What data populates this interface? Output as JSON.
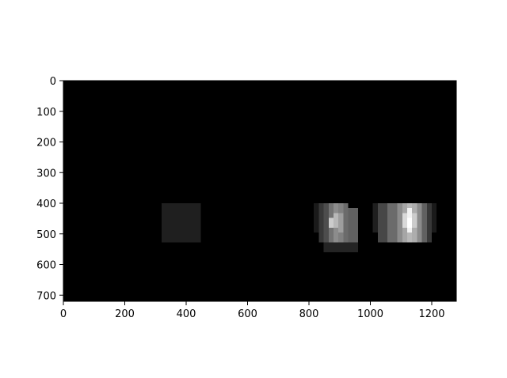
{
  "chart_data": {
    "type": "heatmap",
    "title": "",
    "xlabel": "",
    "ylabel": "",
    "xlim": [
      0,
      1280
    ],
    "ylim": [
      720,
      0
    ],
    "x_ticks": [
      0,
      200,
      400,
      600,
      800,
      1000,
      1200
    ],
    "y_ticks": [
      0,
      100,
      200,
      300,
      400,
      500,
      600,
      700
    ],
    "colormap": "gray",
    "background_color": "#000000",
    "grid": false,
    "cells": [
      {
        "x0": 320,
        "x1": 448,
        "y0": 400,
        "y1": 528,
        "v": 0.12
      },
      {
        "x0": 816,
        "x1": 832,
        "y0": 400,
        "y1": 496,
        "v": 0.1
      },
      {
        "x0": 832,
        "x1": 848,
        "y0": 400,
        "y1": 528,
        "v": 0.22
      },
      {
        "x0": 848,
        "x1": 864,
        "y0": 400,
        "y1": 560,
        "v": 0.3
      },
      {
        "x0": 864,
        "x1": 880,
        "y0": 400,
        "y1": 560,
        "v": 0.45
      },
      {
        "x0": 880,
        "x1": 896,
        "y0": 400,
        "y1": 560,
        "v": 0.55
      },
      {
        "x0": 896,
        "x1": 912,
        "y0": 400,
        "y1": 560,
        "v": 0.5
      },
      {
        "x0": 912,
        "x1": 928,
        "y0": 400,
        "y1": 560,
        "v": 0.42
      },
      {
        "x0": 928,
        "x1": 960,
        "y0": 416,
        "y1": 560,
        "v": 0.38
      },
      {
        "x0": 864,
        "x1": 880,
        "y0": 448,
        "y1": 480,
        "v": 0.8
      },
      {
        "x0": 880,
        "x1": 896,
        "y0": 432,
        "y1": 480,
        "v": 0.72
      },
      {
        "x0": 896,
        "x1": 912,
        "y0": 432,
        "y1": 496,
        "v": 0.62
      },
      {
        "x0": 848,
        "x1": 960,
        "y0": 528,
        "y1": 560,
        "v": 0.14
      },
      {
        "x0": 1008,
        "x1": 1024,
        "y0": 400,
        "y1": 496,
        "v": 0.12
      },
      {
        "x0": 1024,
        "x1": 1056,
        "y0": 400,
        "y1": 528,
        "v": 0.28
      },
      {
        "x0": 1056,
        "x1": 1088,
        "y0": 400,
        "y1": 528,
        "v": 0.42
      },
      {
        "x0": 1088,
        "x1": 1104,
        "y0": 400,
        "y1": 528,
        "v": 0.55
      },
      {
        "x0": 1104,
        "x1": 1120,
        "y0": 400,
        "y1": 528,
        "v": 0.65
      },
      {
        "x0": 1120,
        "x1": 1136,
        "y0": 400,
        "y1": 528,
        "v": 0.72
      },
      {
        "x0": 1136,
        "x1": 1152,
        "y0": 400,
        "y1": 528,
        "v": 0.68
      },
      {
        "x0": 1152,
        "x1": 1168,
        "y0": 400,
        "y1": 528,
        "v": 0.55
      },
      {
        "x0": 1168,
        "x1": 1184,
        "y0": 400,
        "y1": 528,
        "v": 0.38
      },
      {
        "x0": 1184,
        "x1": 1200,
        "y0": 400,
        "y1": 528,
        "v": 0.22
      },
      {
        "x0": 1200,
        "x1": 1216,
        "y0": 400,
        "y1": 496,
        "v": 0.1
      },
      {
        "x0": 1104,
        "x1": 1120,
        "y0": 432,
        "y1": 480,
        "v": 0.85
      },
      {
        "x0": 1120,
        "x1": 1136,
        "y0": 416,
        "y1": 496,
        "v": 0.95
      },
      {
        "x0": 1136,
        "x1": 1152,
        "y0": 432,
        "y1": 480,
        "v": 0.8
      },
      {
        "x0": 1120,
        "x1": 1136,
        "y0": 448,
        "y1": 480,
        "v": 1.0
      }
    ]
  }
}
